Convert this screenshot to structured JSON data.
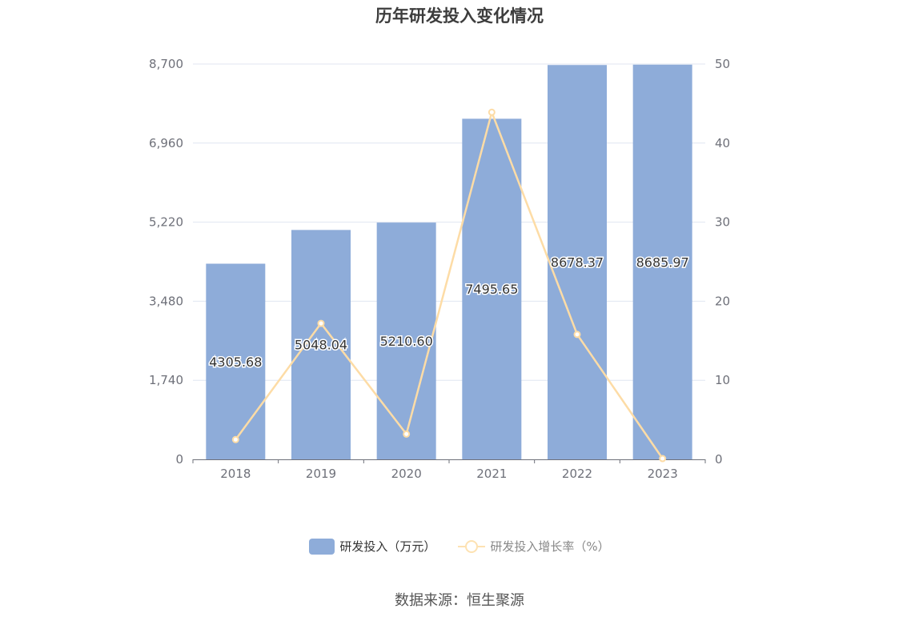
{
  "chart_data": {
    "type": "bar",
    "title": "历年研发投入变化情况",
    "categories": [
      "2018",
      "2019",
      "2020",
      "2021",
      "2022",
      "2023"
    ],
    "series": [
      {
        "name": "研发投入（万元）",
        "type": "bar",
        "axis": "left",
        "values": [
          4305.68,
          5048.04,
          5210.6,
          7495.65,
          8678.37,
          8685.97
        ],
        "labels": [
          "4305.68",
          "5048.04",
          "5210.60",
          "7495.65",
          "8678.37",
          "8685.97"
        ]
      },
      {
        "name": "研发投入增长率（%）",
        "type": "line",
        "axis": "right",
        "values": [
          2.5,
          17.2,
          3.2,
          43.9,
          15.8,
          0.1
        ]
      }
    ],
    "y_left": {
      "ylim": [
        0,
        8700
      ],
      "ticks": [
        "0",
        "1,740",
        "3,480",
        "5,220",
        "6,960",
        "8,700"
      ]
    },
    "y_right": {
      "ylim": [
        0,
        50
      ],
      "ticks": [
        "0",
        "10",
        "20",
        "30",
        "40",
        "50"
      ]
    },
    "grid": true,
    "legend": "bottom-center",
    "colors": {
      "bar": "#8eacd9",
      "line": "#fddca6",
      "grid": "#e0e6f1",
      "axis": "#6e7079"
    }
  },
  "legend": {
    "bar_label": "研发投入（万元）",
    "line_label": "研发投入增长率（%）"
  },
  "source": "数据来源：恒生聚源"
}
